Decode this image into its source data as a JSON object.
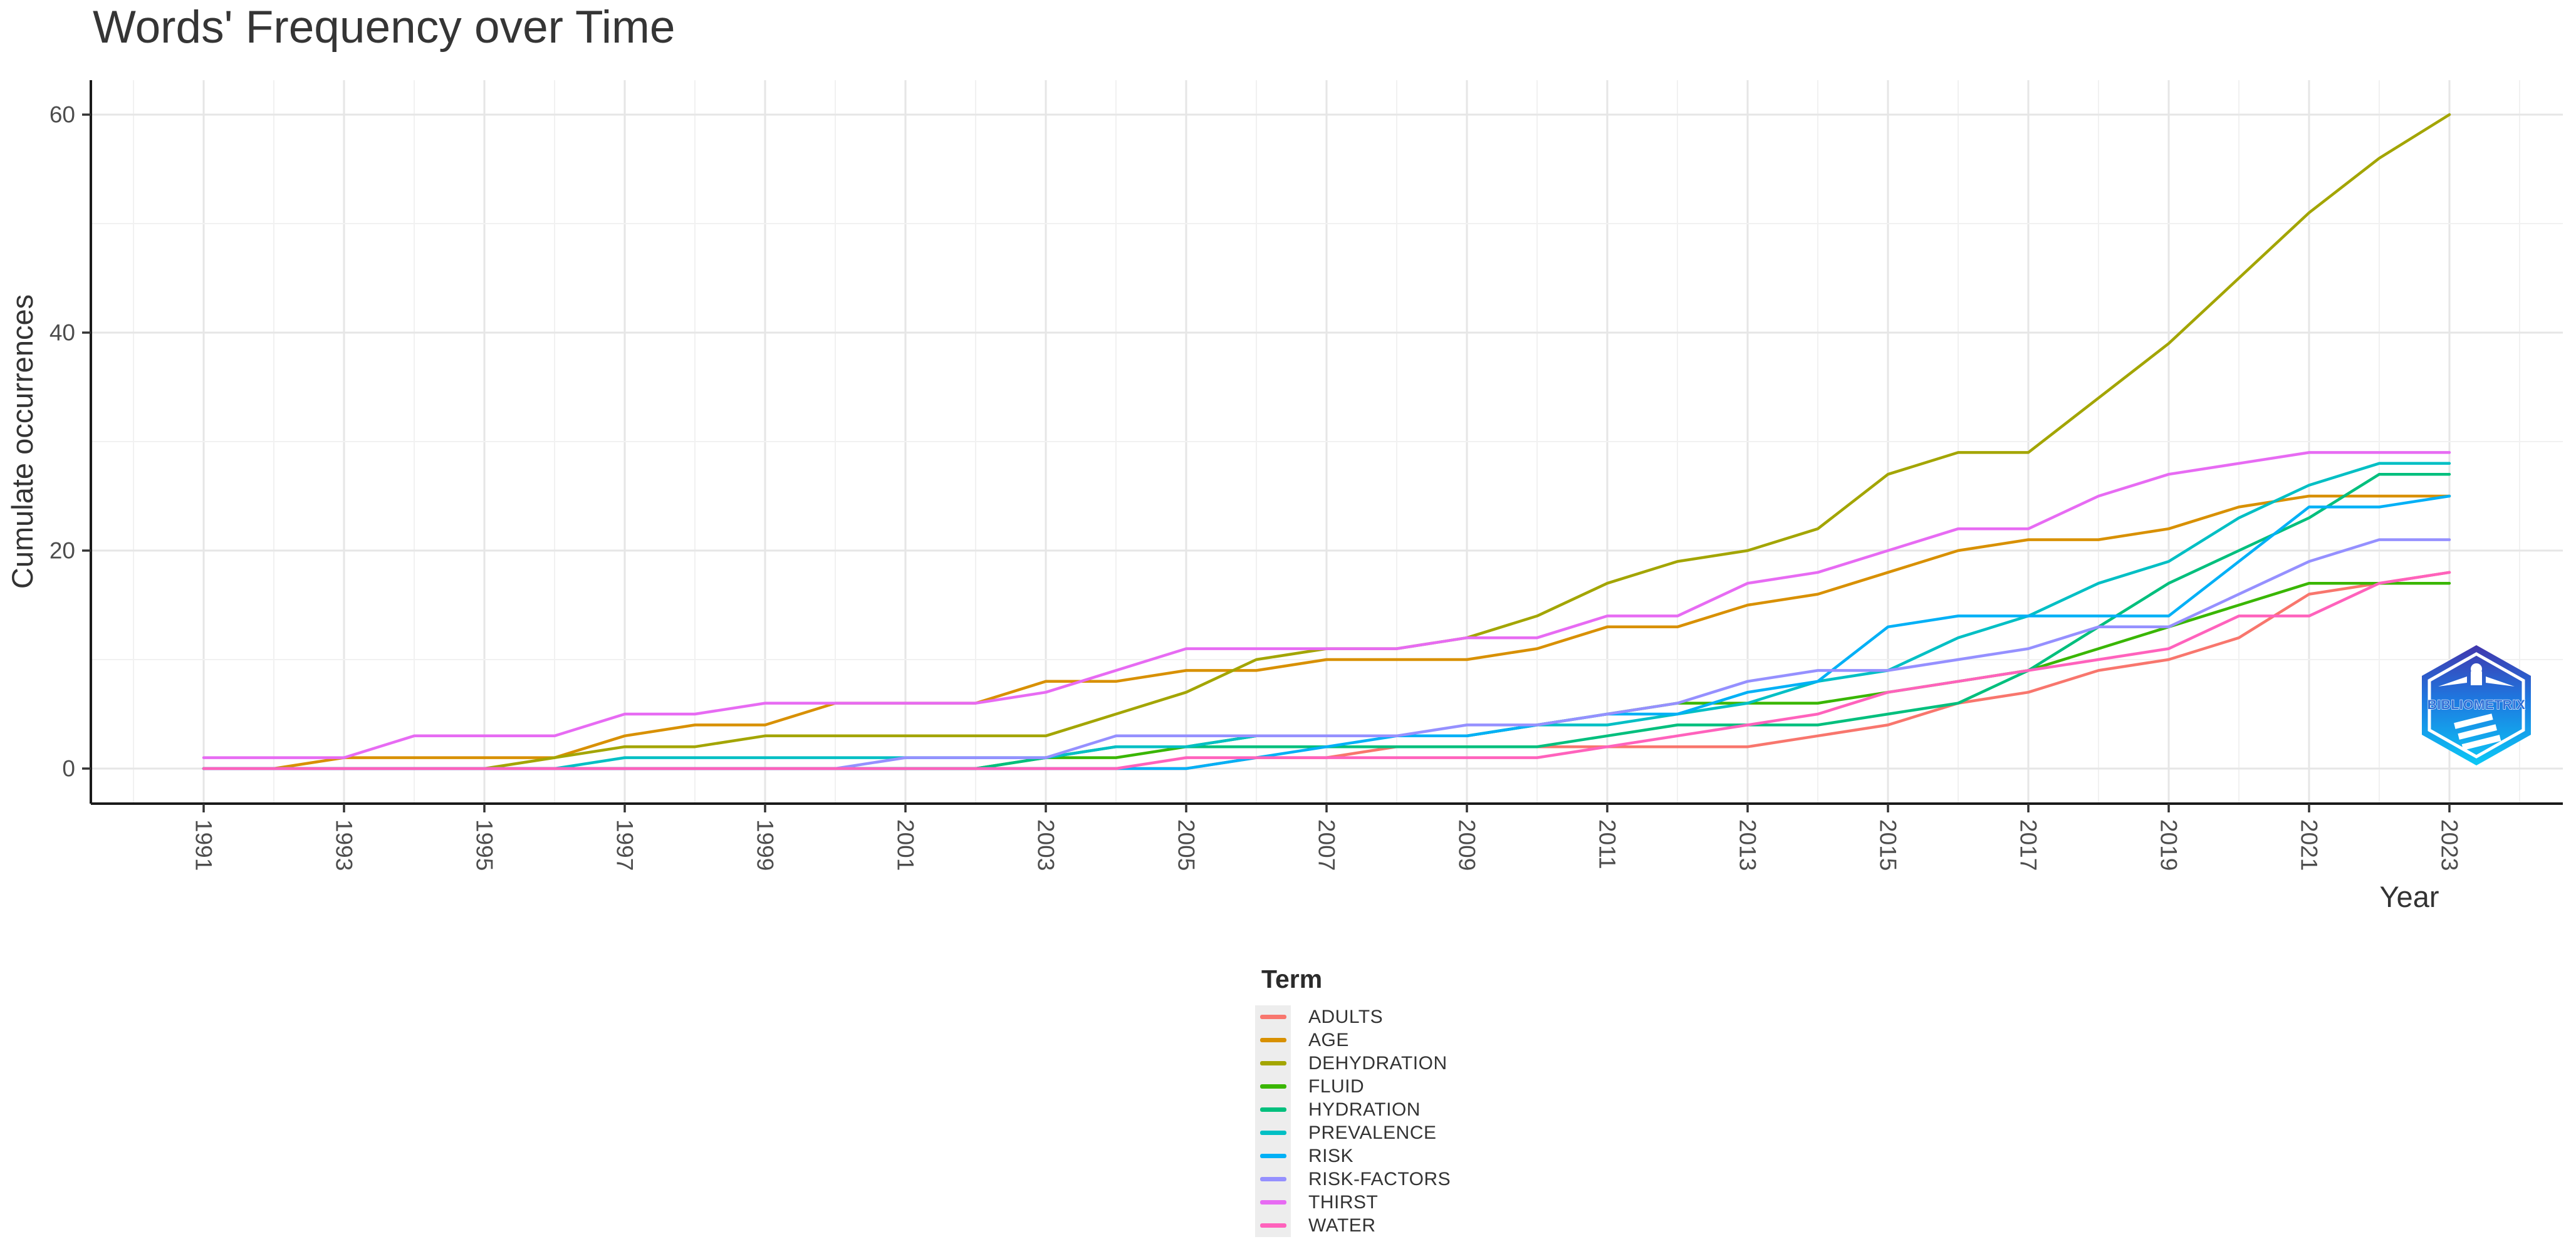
{
  "title": "Words' Frequency over Time",
  "legend": {
    "title": "Term",
    "items": [
      {
        "label": "ADULTS",
        "color": "#F8766D"
      },
      {
        "label": "AGE",
        "color": "#D89000"
      },
      {
        "label": "DEHYDRATION",
        "color": "#A3A500"
      },
      {
        "label": "FLUID",
        "color": "#39B600"
      },
      {
        "label": "HYDRATION",
        "color": "#00BF7D"
      },
      {
        "label": "PREVALENCE",
        "color": "#00BFC4"
      },
      {
        "label": "RISK",
        "color": "#00B0F6"
      },
      {
        "label": "RISK-FACTORS",
        "color": "#9590FF"
      },
      {
        "label": "THIRST",
        "color": "#E76BF3"
      },
      {
        "label": "WATER",
        "color": "#FF62BC"
      }
    ]
  },
  "logo": {
    "text": "BIBLIOMETRIX"
  },
  "chart_data": {
    "type": "line",
    "title": "Words' Frequency over Time",
    "xlabel": "Year",
    "ylabel": "Cumulate occurrences",
    "x": [
      1991,
      1992,
      1993,
      1994,
      1995,
      1996,
      1997,
      1998,
      1999,
      2000,
      2001,
      2002,
      2003,
      2004,
      2005,
      2006,
      2007,
      2008,
      2009,
      2010,
      2011,
      2012,
      2013,
      2014,
      2015,
      2016,
      2017,
      2018,
      2019,
      2020,
      2021,
      2022,
      2023
    ],
    "x_ticks": [
      1991,
      1993,
      1995,
      1997,
      1999,
      2001,
      2003,
      2005,
      2007,
      2009,
      2011,
      2013,
      2015,
      2017,
      2019,
      2021,
      2023
    ],
    "y_ticks": [
      0,
      20,
      40,
      60
    ],
    "y_minor_ticks": [
      10,
      30,
      50
    ],
    "ylim": [
      0,
      60
    ],
    "grid": "major-and-minor",
    "legend_position": "bottom",
    "axis_text_color": "#4d4d4d",
    "axis_line_color": "#1a1a1a",
    "major_grid_color": "#e6e6e6",
    "minor_grid_color": "#f1f1f1",
    "series": [
      {
        "name": "ADULTS",
        "color": "#F8766D",
        "values": [
          0,
          0,
          0,
          0,
          0,
          0,
          0,
          0,
          0,
          0,
          0,
          0,
          0,
          0,
          0,
          1,
          1,
          2,
          2,
          2,
          2,
          2,
          2,
          3,
          4,
          6,
          7,
          9,
          10,
          12,
          16,
          17,
          18
        ]
      },
      {
        "name": "AGE",
        "color": "#D89000",
        "values": [
          0,
          0,
          1,
          1,
          1,
          1,
          3,
          4,
          4,
          6,
          6,
          6,
          8,
          8,
          9,
          9,
          10,
          10,
          10,
          11,
          13,
          13,
          15,
          16,
          18,
          20,
          21,
          21,
          22,
          24,
          25,
          25,
          25
        ]
      },
      {
        "name": "DEHYDRATION",
        "color": "#A3A500",
        "values": [
          0,
          0,
          0,
          0,
          0,
          1,
          2,
          2,
          3,
          3,
          3,
          3,
          3,
          5,
          7,
          10,
          11,
          11,
          12,
          14,
          17,
          19,
          20,
          22,
          27,
          29,
          29,
          34,
          39,
          45,
          51,
          56,
          60
        ]
      },
      {
        "name": "FLUID",
        "color": "#39B600",
        "values": [
          0,
          0,
          0,
          0,
          0,
          0,
          0,
          0,
          0,
          0,
          0,
          0,
          1,
          1,
          2,
          3,
          3,
          3,
          3,
          4,
          5,
          6,
          6,
          6,
          7,
          8,
          9,
          11,
          13,
          15,
          17,
          17,
          17
        ]
      },
      {
        "name": "HYDRATION",
        "color": "#00BF7D",
        "values": [
          0,
          0,
          0,
          0,
          0,
          0,
          0,
          0,
          0,
          0,
          0,
          0,
          1,
          2,
          2,
          2,
          2,
          2,
          2,
          2,
          3,
          4,
          4,
          4,
          5,
          6,
          9,
          13,
          17,
          20,
          23,
          27,
          27
        ]
      },
      {
        "name": "PREVALENCE",
        "color": "#00BFC4",
        "values": [
          0,
          0,
          0,
          0,
          0,
          0,
          1,
          1,
          1,
          1,
          1,
          1,
          1,
          2,
          2,
          3,
          3,
          3,
          3,
          4,
          4,
          5,
          6,
          8,
          9,
          12,
          14,
          17,
          19,
          23,
          26,
          28,
          28
        ]
      },
      {
        "name": "RISK",
        "color": "#00B0F6",
        "values": [
          0,
          0,
          0,
          0,
          0,
          0,
          0,
          0,
          0,
          0,
          0,
          0,
          0,
          0,
          0,
          1,
          2,
          3,
          3,
          4,
          5,
          5,
          7,
          8,
          13,
          14,
          14,
          14,
          14,
          19,
          24,
          24,
          25
        ]
      },
      {
        "name": "RISK-FACTORS",
        "color": "#9590FF",
        "values": [
          0,
          0,
          0,
          0,
          0,
          0,
          0,
          0,
          0,
          0,
          1,
          1,
          1,
          3,
          3,
          3,
          3,
          3,
          4,
          4,
          5,
          6,
          8,
          9,
          9,
          10,
          11,
          13,
          13,
          16,
          19,
          21,
          21
        ]
      },
      {
        "name": "THIRST",
        "color": "#E76BF3",
        "values": [
          1,
          1,
          1,
          3,
          3,
          3,
          5,
          5,
          6,
          6,
          6,
          6,
          7,
          9,
          11,
          11,
          11,
          11,
          12,
          12,
          14,
          14,
          17,
          18,
          20,
          22,
          22,
          25,
          27,
          28,
          29,
          29,
          29
        ]
      },
      {
        "name": "WATER",
        "color": "#FF62BC",
        "values": [
          0,
          0,
          0,
          0,
          0,
          0,
          0,
          0,
          0,
          0,
          0,
          0,
          0,
          0,
          1,
          1,
          1,
          1,
          1,
          1,
          2,
          3,
          4,
          5,
          7,
          8,
          9,
          10,
          11,
          14,
          14,
          17,
          18
        ]
      }
    ]
  }
}
